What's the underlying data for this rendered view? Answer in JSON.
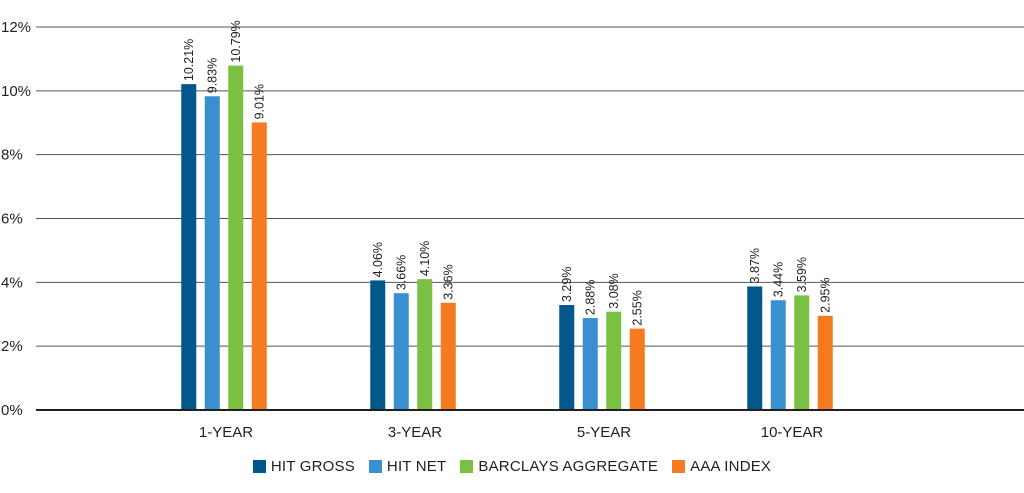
{
  "chart_data": {
    "type": "bar",
    "categories": [
      "1-YEAR",
      "3-YEAR",
      "5-YEAR",
      "10-YEAR"
    ],
    "series": [
      {
        "name": "HIT GROSS",
        "color": "#00578a",
        "values": [
          10.21,
          4.06,
          3.29,
          3.87
        ],
        "labels": [
          "10.21%",
          "4.06%",
          "3.29%",
          "3.87%"
        ]
      },
      {
        "name": "HIT NET",
        "color": "#3a8fd0",
        "values": [
          9.83,
          3.66,
          2.88,
          3.44
        ],
        "labels": [
          "9.83%",
          "3.66%",
          "2.88%",
          "3.44%"
        ]
      },
      {
        "name": "BARCLAYS AGGREGATE",
        "color": "#7ac143",
        "values": [
          10.79,
          4.1,
          3.08,
          3.59
        ],
        "labels": [
          "10.79%",
          "4.10%",
          "3.08%",
          "3.59%"
        ]
      },
      {
        "name": "AAA INDEX",
        "color": "#f47b20",
        "values": [
          9.01,
          3.36,
          2.55,
          2.95
        ],
        "labels": [
          "9.01%",
          "3.36%",
          "2.55%",
          "2.95%"
        ]
      }
    ],
    "ylim": [
      0,
      12
    ],
    "yticks": [
      0,
      2,
      4,
      6,
      8,
      10,
      12
    ],
    "ytick_labels": [
      "0%",
      "2%",
      "4%",
      "6%",
      "8%",
      "10%",
      "12%"
    ],
    "grid": true,
    "legend_position": "bottom-center",
    "title": "",
    "xlabel": "",
    "ylabel": ""
  }
}
